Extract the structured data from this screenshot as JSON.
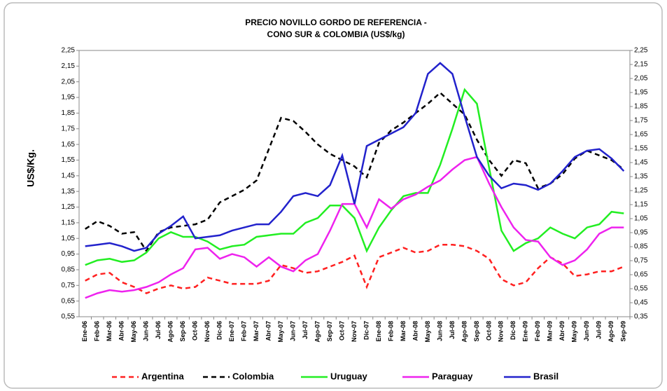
{
  "chart_data": {
    "type": "line",
    "title": "PRECIO NOVILLO GORDO DE REFERENCIA -",
    "subtitle": "CONO SUR & COLOMBIA (US$/kg)",
    "y_label": "US$/Kg.",
    "categories": [
      "Ene-06",
      "Feb-06",
      "Mar-06",
      "Abr-06",
      "May-06",
      "Jun-06",
      "Jul-06",
      "Ago-06",
      "Sep-06",
      "Oct-06",
      "Nov-06",
      "Dic-06",
      "Ene-07",
      "Feb-07",
      "Mar-07",
      "Abr-07",
      "May-07",
      "Jun-07",
      "Jul-07",
      "Ago-07",
      "Sep-07",
      "Oct-07",
      "Nov-07",
      "Dic-07",
      "Ene-08",
      "Feb-08",
      "Mar-08",
      "Abr-08",
      "May-08",
      "Jun-08",
      "Jul-08",
      "Ago-08",
      "Sep-08",
      "Oct-08",
      "Nov-08",
      "Dic-08",
      "Ene-09",
      "Feb-09",
      "Mar-09",
      "Abr-09",
      "May-09",
      "Jun-09",
      "Jul-09",
      "Ago-09",
      "Sep-09"
    ],
    "series": [
      {
        "name": "Argentina",
        "color": "#ff2020",
        "line_style": "dashed",
        "values": [
          0.78,
          0.82,
          0.83,
          0.77,
          0.74,
          0.7,
          0.73,
          0.75,
          0.73,
          0.74,
          0.8,
          0.78,
          0.76,
          0.76,
          0.76,
          0.78,
          0.88,
          0.86,
          0.83,
          0.84,
          0.87,
          0.9,
          0.94,
          0.74,
          0.93,
          0.96,
          0.99,
          0.96,
          0.97,
          1.01,
          1.01,
          1.0,
          0.97,
          0.92,
          0.79,
          0.75,
          0.77,
          0.86,
          0.93,
          0.89,
          0.81,
          0.82,
          0.84,
          0.84,
          0.87
        ]
      },
      {
        "name": "Colombia",
        "color": "#000000",
        "line_style": "dashed",
        "values": [
          1.11,
          1.16,
          1.13,
          1.08,
          1.09,
          0.97,
          1.09,
          1.12,
          1.13,
          1.14,
          1.17,
          1.28,
          1.32,
          1.36,
          1.42,
          1.62,
          1.82,
          1.8,
          1.73,
          1.65,
          1.59,
          1.55,
          1.51,
          1.44,
          1.66,
          1.74,
          1.79,
          1.85,
          1.91,
          1.98,
          1.91,
          1.84,
          1.68,
          1.55,
          1.45,
          1.55,
          1.53,
          1.37,
          1.4,
          1.46,
          1.56,
          1.61,
          1.58,
          1.55,
          1.49
        ]
      },
      {
        "name": "Uruguay",
        "color": "#22ee22",
        "line_style": "solid",
        "values": [
          0.88,
          0.91,
          0.92,
          0.9,
          0.91,
          0.96,
          1.05,
          1.09,
          1.06,
          1.06,
          1.03,
          0.98,
          1.0,
          1.01,
          1.06,
          1.07,
          1.08,
          1.08,
          1.15,
          1.18,
          1.26,
          1.26,
          1.18,
          0.97,
          1.12,
          1.23,
          1.32,
          1.34,
          1.34,
          1.52,
          1.75,
          2.0,
          1.91,
          1.5,
          1.1,
          0.97,
          1.02,
          1.05,
          1.12,
          1.08,
          1.05,
          1.12,
          1.14,
          1.22,
          1.21
        ]
      },
      {
        "name": "Paraguay",
        "color": "#ee22ee",
        "line_style": "solid",
        "values": [
          0.67,
          0.7,
          0.72,
          0.71,
          0.72,
          0.74,
          0.77,
          0.82,
          0.86,
          0.98,
          0.99,
          0.92,
          0.95,
          0.93,
          0.87,
          0.93,
          0.87,
          0.84,
          0.91,
          0.95,
          1.1,
          1.27,
          1.27,
          1.12,
          1.3,
          1.24,
          1.3,
          1.33,
          1.38,
          1.42,
          1.49,
          1.55,
          1.57,
          1.4,
          1.25,
          1.12,
          1.04,
          1.03,
          0.93,
          0.88,
          0.91,
          0.98,
          1.08,
          1.12,
          1.12
        ]
      },
      {
        "name": "Brasil",
        "color": "#2222cc",
        "line_style": "solid",
        "values": [
          1.0,
          1.01,
          1.02,
          1.0,
          0.97,
          0.99,
          1.08,
          1.13,
          1.19,
          1.05,
          1.06,
          1.07,
          1.1,
          1.12,
          1.14,
          1.14,
          1.22,
          1.32,
          1.34,
          1.32,
          1.39,
          1.58,
          1.27,
          1.64,
          1.68,
          1.72,
          1.76,
          1.85,
          2.1,
          2.17,
          2.1,
          1.83,
          1.57,
          1.45,
          1.37,
          1.4,
          1.39,
          1.36,
          1.4,
          1.48,
          1.57,
          1.61,
          1.62,
          1.56,
          1.48
        ]
      }
    ],
    "ylim": [
      0.55,
      2.25
    ],
    "yticks": [
      {
        "value": 0.55,
        "label": "0,55"
      },
      {
        "value": 0.65,
        "label": "0,65"
      },
      {
        "value": 0.75,
        "label": "0,75"
      },
      {
        "value": 0.85,
        "label": "0,85"
      },
      {
        "value": 0.95,
        "label": "0,95"
      },
      {
        "value": 1.05,
        "label": "1,05"
      },
      {
        "value": 1.15,
        "label": "1,15"
      },
      {
        "value": 1.25,
        "label": "1,25"
      },
      {
        "value": 1.35,
        "label": "1,35"
      },
      {
        "value": 1.45,
        "label": "1,45"
      },
      {
        "value": 1.55,
        "label": "1,55"
      },
      {
        "value": 1.65,
        "label": "1,65"
      },
      {
        "value": 1.75,
        "label": "1,75"
      },
      {
        "value": 1.85,
        "label": "1,85"
      },
      {
        "value": 1.95,
        "label": "1,95"
      },
      {
        "value": 2.05,
        "label": "2,05"
      },
      {
        "value": 2.15,
        "label": "2,15"
      },
      {
        "value": 2.25,
        "label": "2,25"
      }
    ],
    "y2lim": [
      0.35,
      2.25
    ],
    "y2ticks": [
      {
        "value": 0.35,
        "label": "0,35"
      },
      {
        "value": 0.45,
        "label": "0,45"
      },
      {
        "value": 0.55,
        "label": "0,55"
      },
      {
        "value": 0.65,
        "label": "0,65"
      },
      {
        "value": 0.75,
        "label": "0,75"
      },
      {
        "value": 0.85,
        "label": "0,85"
      },
      {
        "value": 0.95,
        "label": "0,95"
      },
      {
        "value": 1.05,
        "label": "1,05"
      },
      {
        "value": 1.15,
        "label": "1,15"
      },
      {
        "value": 1.25,
        "label": "1,25"
      },
      {
        "value": 1.35,
        "label": "1,35"
      },
      {
        "value": 1.45,
        "label": "1,45"
      },
      {
        "value": 1.55,
        "label": "1,55"
      },
      {
        "value": 1.65,
        "label": "1,65"
      },
      {
        "value": 1.75,
        "label": "1,75"
      },
      {
        "value": 1.85,
        "label": "1,85"
      },
      {
        "value": 1.95,
        "label": "1,95"
      },
      {
        "value": 2.05,
        "label": "2,05"
      },
      {
        "value": 2.15,
        "label": "2,15"
      },
      {
        "value": 2.25,
        "label": "2,25"
      }
    ],
    "grid": false
  }
}
